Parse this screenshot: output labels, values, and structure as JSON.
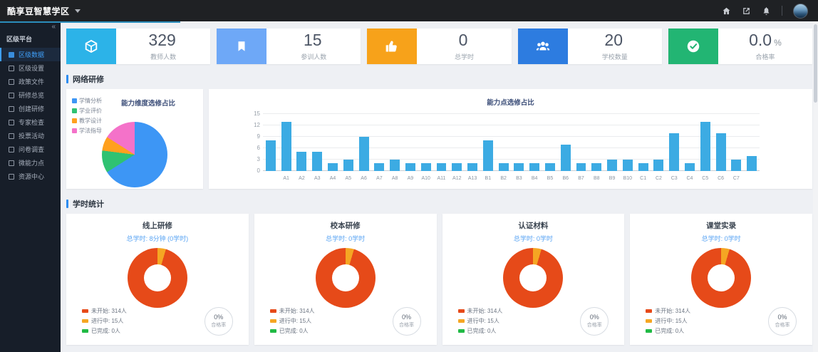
{
  "ui_colors": {
    "section_accent": "#2d8cf0",
    "progress_line": "#2b8dbb"
  },
  "navbar": {
    "brand": "酷享豆智慧学区"
  },
  "sidebar": {
    "collapse_glyph": "«",
    "group_label": "区级平台",
    "active_color": "#3f9ff8",
    "items": [
      {
        "label": "区级数据",
        "icon": "district-data-icon",
        "active": true
      },
      {
        "label": "区级设置",
        "icon": "district-settings-icon",
        "active": false
      },
      {
        "label": "政策文件",
        "icon": "policy-file-icon",
        "active": false
      },
      {
        "label": "研修总览",
        "icon": "training-overview-icon",
        "active": false
      },
      {
        "label": "创建研修",
        "icon": "create-training-icon",
        "active": false
      },
      {
        "label": "专家检查",
        "icon": "expert-check-icon",
        "active": false
      },
      {
        "label": "投票活动",
        "icon": "vote-activity-icon",
        "active": false
      },
      {
        "label": "问卷调查",
        "icon": "survey-icon",
        "active": false
      },
      {
        "label": "微能力点",
        "icon": "ability-point-icon",
        "active": false
      },
      {
        "label": "资源中心",
        "icon": "resource-center-icon",
        "active": false
      }
    ]
  },
  "stats": [
    {
      "value": "329",
      "unit": "",
      "label": "教师人数",
      "icon": "cube-icon",
      "color": "#2cb3e8"
    },
    {
      "value": "15",
      "unit": "",
      "label": "参训人数",
      "icon": "bookmark-icon",
      "color": "#6ea8f7"
    },
    {
      "value": "0",
      "unit": "",
      "label": "总学时",
      "icon": "thumb-up-icon",
      "color": "#f7a21a"
    },
    {
      "value": "20",
      "unit": "",
      "label": "学校数量",
      "icon": "team-icon",
      "color": "#2d7ce0"
    },
    {
      "value": "0.0",
      "unit": "%",
      "label": "合格率",
      "icon": "check-circle-icon",
      "color": "#22b573"
    }
  ],
  "network_section": {
    "title": "网络研修"
  },
  "hours_section": {
    "title": "学时统计",
    "cards": [
      {
        "title": "线上研修",
        "subtitle": "总学时: 8分钟 (0学时)",
        "badge_value": "0%",
        "badge_label": "合格率"
      },
      {
        "title": "校本研修",
        "subtitle": "总学时: 0学时",
        "badge_value": "0%",
        "badge_label": "合格率"
      },
      {
        "title": "认证材料",
        "subtitle": "总学时: 0学时",
        "badge_value": "0%",
        "badge_label": "合格率"
      },
      {
        "title": "课堂实录",
        "subtitle": "总学时: 0学时",
        "badge_value": "0%",
        "badge_label": "合格率"
      }
    ]
  },
  "chart_data": [
    {
      "id": "dimension-pie",
      "type": "pie",
      "title": "能力维度选修占比",
      "labels": [
        "学情分析",
        "学业评价",
        "教学设计",
        "学法指导"
      ],
      "values": [
        66,
        11,
        7,
        16
      ],
      "colors": [
        "#3d96f5",
        "#2fc272",
        "#ffa01e",
        "#f472c9"
      ],
      "legend_position": "top-left"
    },
    {
      "id": "ability-bar",
      "type": "bar",
      "title": "能力点选修占比",
      "color": "#3cabe3",
      "ylim": [
        0,
        15
      ],
      "yticks": [
        0,
        3,
        6,
        9,
        12,
        15
      ],
      "grid": true,
      "categories": [
        "",
        "A1",
        "A2",
        "A3",
        "A4",
        "A5",
        "A6",
        "A7",
        "A8",
        "A9",
        "A10",
        "A11",
        "A12",
        "A13",
        "B1",
        "B2",
        "B3",
        "B4",
        "B5",
        "B6",
        "B7",
        "B8",
        "B9",
        "B10",
        "C1",
        "C2",
        "C3",
        "C4",
        "C5",
        "C6",
        "C7",
        ""
      ],
      "values": [
        8,
        13,
        5,
        5,
        2,
        3,
        9,
        2,
        3,
        2,
        2,
        2,
        2,
        2,
        8,
        2,
        2,
        2,
        2,
        7,
        2,
        2,
        3,
        3,
        2,
        3,
        10,
        2,
        13,
        10,
        3,
        4
      ]
    },
    {
      "id": "hours-donut",
      "type": "pie",
      "variant": "donut",
      "applies_to": [
        "线上研修",
        "校本研修",
        "认证材料",
        "课堂实录"
      ],
      "labels": [
        "未开始",
        "进行中",
        "已完成"
      ],
      "values": [
        314,
        15,
        0
      ],
      "value_unit": "人",
      "legend_texts": [
        "未开始: 314人",
        "进行中: 15人",
        "已完成: 0人"
      ],
      "colors": [
        "#e64a19",
        "#f5a623",
        "#21ba45"
      ],
      "draw_order": [
        1,
        0,
        2
      ],
      "center_badge": {
        "value": "0%",
        "label": "合格率"
      }
    }
  ]
}
